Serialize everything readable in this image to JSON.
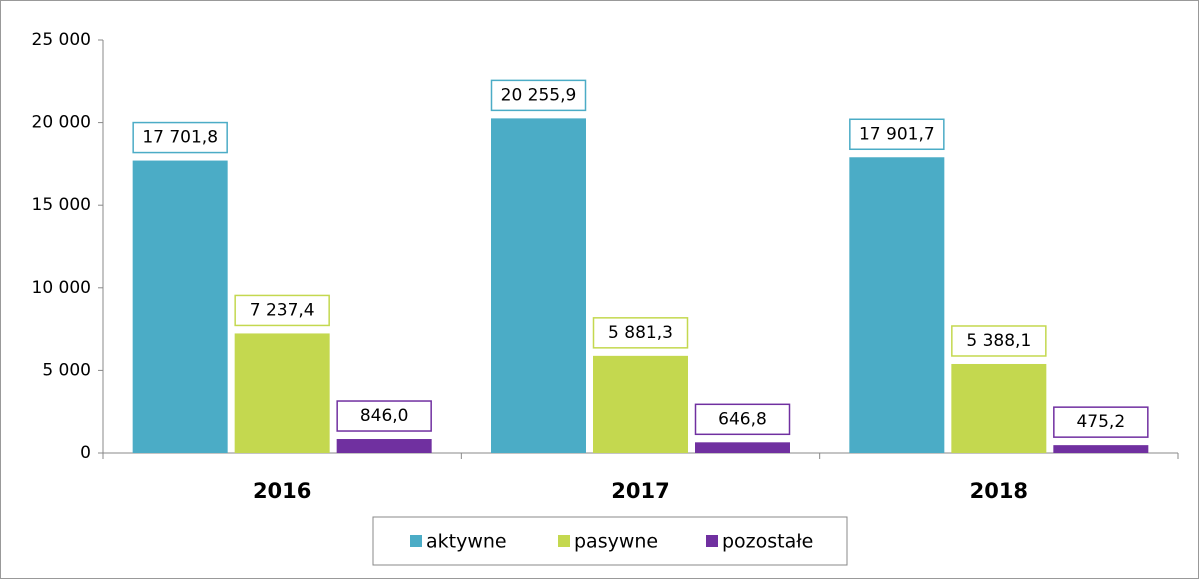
{
  "chart_data": {
    "type": "bar",
    "categories": [
      "2016",
      "2017",
      "2018"
    ],
    "series": [
      {
        "name": "aktywne",
        "color": "#4bacc6",
        "values": [
          17701.8,
          20255.9,
          17901.7
        ],
        "value_labels": [
          "17 701,8",
          "20 255,9",
          "17 901,7"
        ]
      },
      {
        "name": "pasywne",
        "color": "#c4d84f",
        "values": [
          7237.4,
          5881.3,
          5388.1
        ],
        "value_labels": [
          "7 237,4",
          "5 881,3",
          "5 388,1"
        ]
      },
      {
        "name": "pozostałe",
        "color": "#7030a0",
        "values": [
          846.0,
          646.8,
          475.2
        ],
        "value_labels": [
          "846,0",
          "646,8",
          "475,2"
        ]
      }
    ],
    "ylim": [
      0,
      25000
    ],
    "yticks": [
      0,
      {
        "value": 5000,
        "label": "5 000"
      },
      {
        "value": 10000,
        "label": "10 000"
      },
      {
        "value": 15000,
        "label": "15 000"
      },
      {
        "value": 20000,
        "label": "20 000"
      },
      {
        "value": 25000,
        "label": "25 000"
      }
    ],
    "grid": false,
    "legend": "bottom"
  }
}
